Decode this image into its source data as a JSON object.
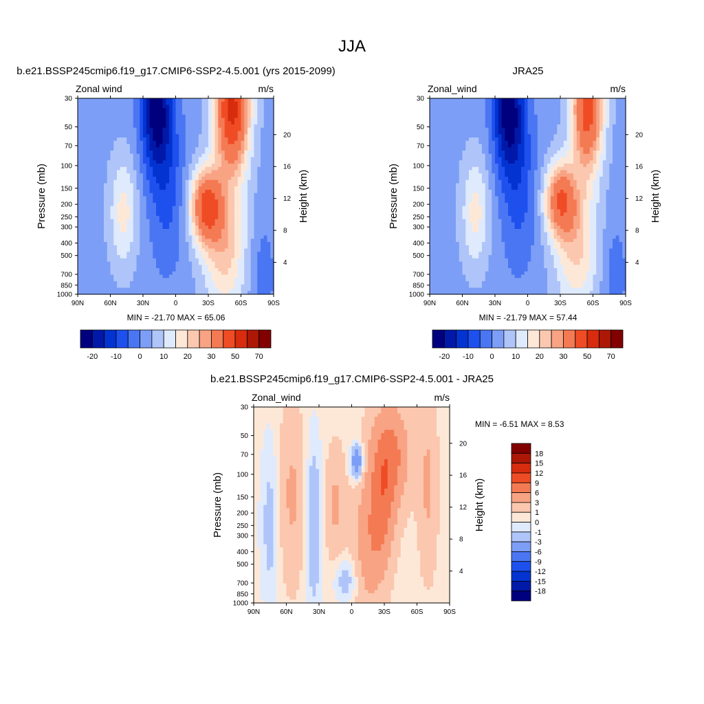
{
  "page_title": "JJA",
  "palette": {
    "blue_red_14": [
      "#00007f",
      "#0019a9",
      "#0334d1",
      "#1e50ee",
      "#4a76f3",
      "#7c9ef6",
      "#afc5f9",
      "#dfeafd",
      "#fde8d8",
      "#fbc7ae",
      "#f8a383",
      "#f47a54",
      "#ef4c25",
      "#d72c0d",
      "#ac1706",
      "#820000"
    ]
  },
  "chart_data": [
    {
      "id": "model",
      "type": "contour",
      "title": "b.e21.BSSP245cmip6.f19_g17.CMIP6-SSP2-4.5.001 (yrs 2015-2099)",
      "left_label": "Zonal wind",
      "right_label": "m/s",
      "ylabel": "Pressure (mb)",
      "y2label": "Height (km)",
      "x_ticks": [
        "90N",
        "60N",
        "30N",
        "0",
        "30S",
        "60S",
        "90S"
      ],
      "x_values": [
        90,
        60,
        30,
        0,
        -30,
        -60,
        -90
      ],
      "y_ticks": [
        "30",
        "50",
        "70",
        "100",
        "150",
        "200",
        "250",
        "300",
        "400",
        "500",
        "700",
        "850",
        "1000"
      ],
      "y_values": [
        30,
        50,
        70,
        100,
        150,
        200,
        250,
        300,
        400,
        500,
        700,
        850,
        1000
      ],
      "height_ticks": [
        "20",
        "16",
        "12",
        "8",
        "4"
      ],
      "height_values": [
        20,
        16,
        12,
        8,
        4
      ],
      "stats": "MIN = -21.70  MAX =  65.06",
      "min": -21.7,
      "max": 65.06,
      "colorbar_labels": [
        "-20",
        "-10",
        "0",
        "10",
        "20",
        "30",
        "50",
        "70"
      ],
      "colorbar_levels": [
        -25,
        -20,
        -15,
        -10,
        -5,
        0,
        5,
        10,
        15,
        20,
        25,
        30,
        40,
        50,
        60,
        70,
        80
      ]
    },
    {
      "id": "obs",
      "type": "contour",
      "title": "JRA25",
      "left_label": "Zonal_wind",
      "right_label": "m/s",
      "ylabel": "Pressure (mb)",
      "y2label": "Height (km)",
      "x_ticks": [
        "90N",
        "60N",
        "30N",
        "0",
        "30S",
        "60S",
        "90S"
      ],
      "x_values": [
        90,
        60,
        30,
        0,
        -30,
        -60,
        -90
      ],
      "y_ticks": [
        "30",
        "50",
        "70",
        "100",
        "150",
        "200",
        "250",
        "300",
        "400",
        "500",
        "700",
        "850",
        "1000"
      ],
      "y_values": [
        30,
        50,
        70,
        100,
        150,
        200,
        250,
        300,
        400,
        500,
        700,
        850,
        1000
      ],
      "height_ticks": [
        "20",
        "16",
        "12",
        "8",
        "4"
      ],
      "height_values": [
        20,
        16,
        12,
        8,
        4
      ],
      "stats": "MIN = -21.79  MAX =  57.44",
      "min": -21.79,
      "max": 57.44,
      "colorbar_labels": [
        "-20",
        "-10",
        "0",
        "10",
        "20",
        "30",
        "50",
        "70"
      ],
      "colorbar_levels": [
        -25,
        -20,
        -15,
        -10,
        -5,
        0,
        5,
        10,
        15,
        20,
        25,
        30,
        40,
        50,
        60,
        70,
        80
      ]
    },
    {
      "id": "diff",
      "type": "contour",
      "title": "b.e21.BSSP245cmip6.f19_g17.CMIP6-SSP2-4.5.001 - JRA25",
      "left_label": "Zonal_wind",
      "right_label": "m/s",
      "ylabel": "Pressure (mb)",
      "y2label": "Height (km)",
      "x_ticks": [
        "90N",
        "60N",
        "30N",
        "0",
        "30S",
        "60S",
        "90S"
      ],
      "x_values": [
        90,
        60,
        30,
        0,
        -30,
        -60,
        -90
      ],
      "y_ticks": [
        "30",
        "50",
        "70",
        "100",
        "150",
        "200",
        "250",
        "300",
        "400",
        "500",
        "700",
        "850",
        "1000"
      ],
      "y_values": [
        30,
        50,
        70,
        100,
        150,
        200,
        250,
        300,
        400,
        500,
        700,
        850,
        1000
      ],
      "height_ticks": [
        "20",
        "16",
        "12",
        "8",
        "4"
      ],
      "height_values": [
        20,
        16,
        12,
        8,
        4
      ],
      "stats": "MIN =  -6.51  MAX =   8.53",
      "min": -6.51,
      "max": 8.53,
      "colorbar_labels": [
        "18",
        "15",
        "12",
        "9",
        "6",
        "3",
        "1",
        "0",
        "-1",
        "-3",
        "-6",
        "-9",
        "-12",
        "-15",
        "-18"
      ],
      "colorbar_levels": [
        -21,
        -18,
        -15,
        -12,
        -9,
        -6,
        -3,
        -1,
        0,
        1,
        3,
        6,
        9,
        12,
        15,
        18,
        21
      ]
    }
  ]
}
